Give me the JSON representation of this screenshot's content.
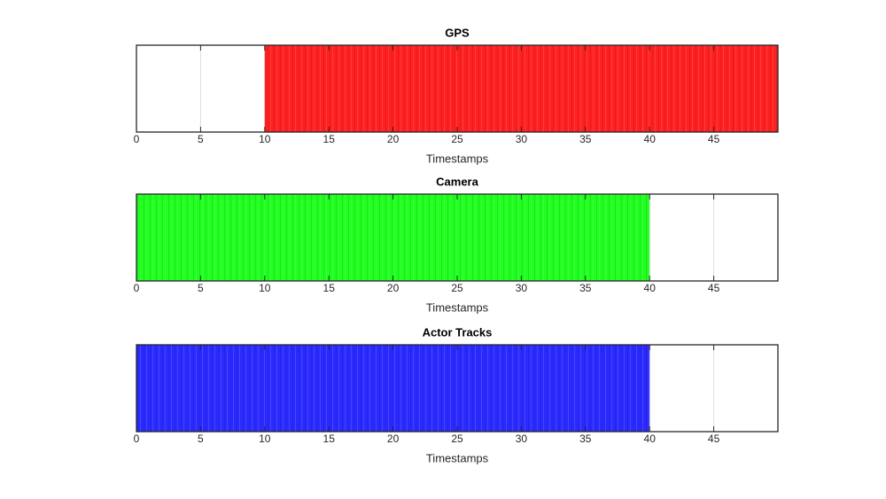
{
  "chart_data": [
    {
      "type": "span",
      "title": "GPS",
      "xlabel": "Timestamps",
      "start": 10,
      "end": 50,
      "color": "#ff2020",
      "xlim": [
        0,
        50
      ],
      "xticks": [
        0,
        5,
        10,
        15,
        20,
        25,
        30,
        35,
        40,
        45
      ],
      "grid": true
    },
    {
      "type": "span",
      "title": "Camera",
      "xlabel": "Timestamps",
      "start": 0,
      "end": 40,
      "color": "#20ff20",
      "xlim": [
        0,
        50
      ],
      "xticks": [
        0,
        5,
        10,
        15,
        20,
        25,
        30,
        35,
        40,
        45
      ],
      "grid": true
    },
    {
      "type": "span",
      "title": "Actor Tracks",
      "xlabel": "Timestamps",
      "start": 0,
      "end": 40,
      "color": "#2a2aff",
      "xlim": [
        0,
        50
      ],
      "xticks": [
        0,
        5,
        10,
        15,
        20,
        25,
        30,
        35,
        40,
        45
      ],
      "grid": true
    }
  ]
}
